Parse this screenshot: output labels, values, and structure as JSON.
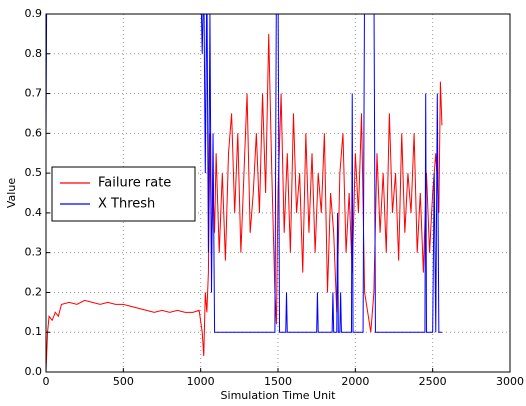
{
  "chart_data": {
    "type": "line",
    "xlabel": "Simulation Time Unit",
    "ylabel": "Value",
    "xlim": [
      0,
      3000
    ],
    "ylim": [
      0,
      0.9
    ],
    "xticks": [
      0,
      500,
      1000,
      1500,
      2000,
      2500,
      3000
    ],
    "yticks": [
      {
        "value": 0,
        "label": "0.0"
      },
      0.1,
      0.2,
      0.3,
      0.4,
      0.5,
      0.6,
      0.7,
      0.8,
      0.9
    ],
    "grid": true,
    "legend": "center left",
    "series": [
      {
        "name": "Failure rate",
        "color": "#ff0000",
        "x": [
          0,
          10,
          20,
          40,
          60,
          80,
          100,
          150,
          200,
          250,
          300,
          350,
          400,
          450,
          500,
          550,
          600,
          650,
          700,
          750,
          800,
          850,
          900,
          950,
          990,
          1010,
          1020,
          1030,
          1040,
          1050,
          1060,
          1070,
          1080,
          1090,
          1100,
          1120,
          1140,
          1160,
          1180,
          1200,
          1220,
          1240,
          1260,
          1280,
          1300,
          1320,
          1340,
          1360,
          1380,
          1400,
          1420,
          1440,
          1460,
          1480,
          1490,
          1500,
          1520,
          1540,
          1560,
          1580,
          1600,
          1620,
          1640,
          1660,
          1680,
          1700,
          1720,
          1740,
          1760,
          1780,
          1800,
          1820,
          1840,
          1860,
          1880,
          1900,
          1920,
          1940,
          1960,
          1980,
          2000,
          2020,
          2040,
          2060,
          2080,
          2100,
          2120,
          2140,
          2160,
          2180,
          2200,
          2220,
          2240,
          2260,
          2280,
          2300,
          2320,
          2340,
          2360,
          2380,
          2400,
          2420,
          2440,
          2460,
          2480,
          2500,
          2520,
          2540,
          2550,
          2560
        ],
        "values": [
          0,
          0.1,
          0.14,
          0.13,
          0.15,
          0.14,
          0.17,
          0.175,
          0.17,
          0.18,
          0.175,
          0.17,
          0.175,
          0.17,
          0.17,
          0.165,
          0.16,
          0.155,
          0.15,
          0.155,
          0.15,
          0.155,
          0.15,
          0.15,
          0.155,
          0.1,
          0.04,
          0.2,
          0.15,
          0.25,
          0.6,
          0.3,
          0.45,
          0.35,
          0.55,
          0.3,
          0.5,
          0.28,
          0.55,
          0.65,
          0.4,
          0.6,
          0.3,
          0.5,
          0.7,
          0.35,
          0.45,
          0.6,
          0.4,
          0.7,
          0.45,
          0.85,
          0.5,
          0.2,
          0.12,
          0.45,
          0.7,
          0.35,
          0.55,
          0.3,
          0.65,
          0.4,
          0.5,
          0.25,
          0.6,
          0.35,
          0.55,
          0.3,
          0.5,
          0.4,
          0.6,
          0.2,
          0.45,
          0.35,
          0.15,
          0.5,
          0.6,
          0.3,
          0.45,
          0.25,
          0.55,
          0.4,
          0.65,
          0.2,
          0.15,
          0.1,
          0.2,
          0.55,
          0.35,
          0.5,
          0.3,
          0.65,
          0.4,
          0.5,
          0.28,
          0.6,
          0.35,
          0.5,
          0.4,
          0.6,
          0.3,
          0.45,
          0.25,
          0.5,
          0.3,
          0.45,
          0.55,
          0.4,
          0.73,
          0.62
        ]
      },
      {
        "name": "X Thresh",
        "color": "#0000ff",
        "x": [
          0,
          5,
          1000,
          1010,
          1020,
          1030,
          1040,
          1050,
          1060,
          1070,
          1080,
          1090,
          1480,
          1490,
          1500,
          1510,
          1550,
          1555,
          1560,
          1750,
          1755,
          1760,
          1850,
          1855,
          1860,
          1880,
          1885,
          1890,
          1900,
          1905,
          1910,
          1975,
          1980,
          1985,
          2050,
          2060,
          2120,
          2130,
          2450,
          2455,
          2460,
          2500,
          2510,
          2520,
          2530,
          2540,
          2560
        ],
        "values": [
          0.6,
          1.0,
          1.0,
          0.8,
          1.0,
          0.5,
          1.0,
          0.3,
          0.9,
          0.2,
          0.6,
          0.1,
          0.1,
          1.0,
          1.0,
          0.1,
          0.1,
          0.2,
          0.1,
          0.1,
          0.2,
          0.1,
          0.1,
          0.2,
          0.1,
          0.1,
          0.4,
          0.1,
          0.1,
          0.2,
          0.1,
          0.1,
          0.7,
          0.1,
          0.1,
          1.0,
          1.0,
          0.1,
          0.1,
          0.7,
          0.1,
          0.1,
          0.5,
          0.1,
          0.7,
          0.1,
          0.1
        ]
      }
    ]
  }
}
